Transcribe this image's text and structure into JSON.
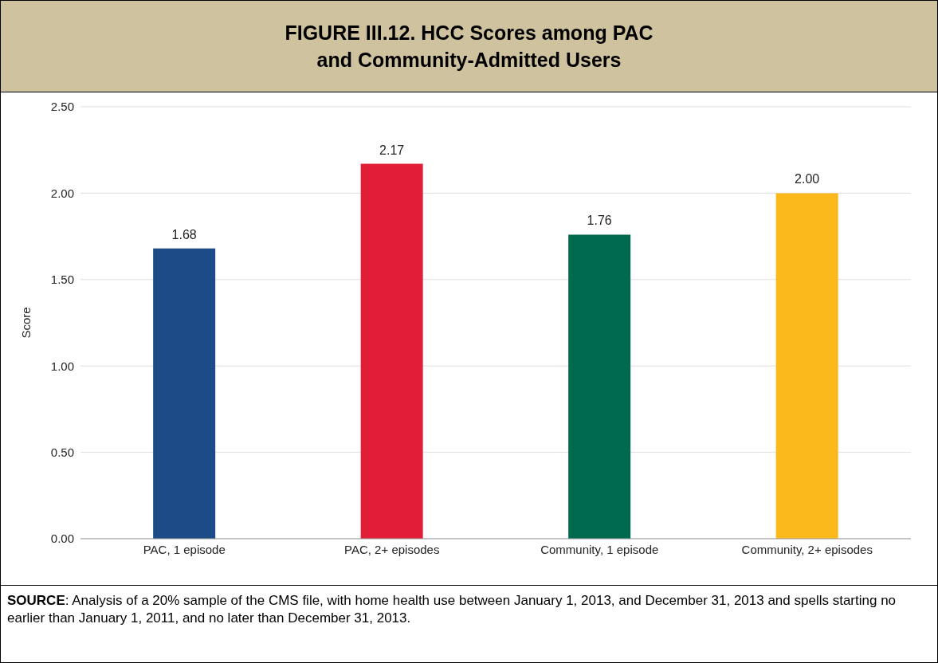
{
  "chart_data": {
    "type": "bar",
    "title": "FIGURE III.12. HCC Scores among PAC\nand Community-Admitted Users",
    "ylabel": "Score",
    "categories": [
      "PAC, 1 episode",
      "PAC, 2+ episodes",
      "Community, 1 episode",
      "Community, 2+ episodes"
    ],
    "values": [
      1.68,
      2.17,
      1.76,
      2.0
    ],
    "colors": [
      "#1d4b87",
      "#e21d38",
      "#006a4e",
      "#fbb81b"
    ],
    "value_labels": [
      "1.68",
      "2.17",
      "1.76",
      "2.00"
    ],
    "ylim": [
      0,
      2.5
    ],
    "yticks": [
      {
        "value": 0,
        "label": "0.00"
      },
      {
        "value": 0.5,
        "label": "0.50"
      },
      {
        "value": 1,
        "label": "1.00"
      },
      {
        "value": 1.5,
        "label": "1.50"
      },
      {
        "value": 2,
        "label": "2.00"
      },
      {
        "value": 2.5,
        "label": "2.50"
      }
    ],
    "grid": "y",
    "annotations": [
      "SOURCE: Analysis of a 20% sample of the CMS file, with home health use between January 1, 2013, and December 31, 2013 and spells starting no earlier than January 1, 2011, and no later than December 31, 2013."
    ]
  }
}
